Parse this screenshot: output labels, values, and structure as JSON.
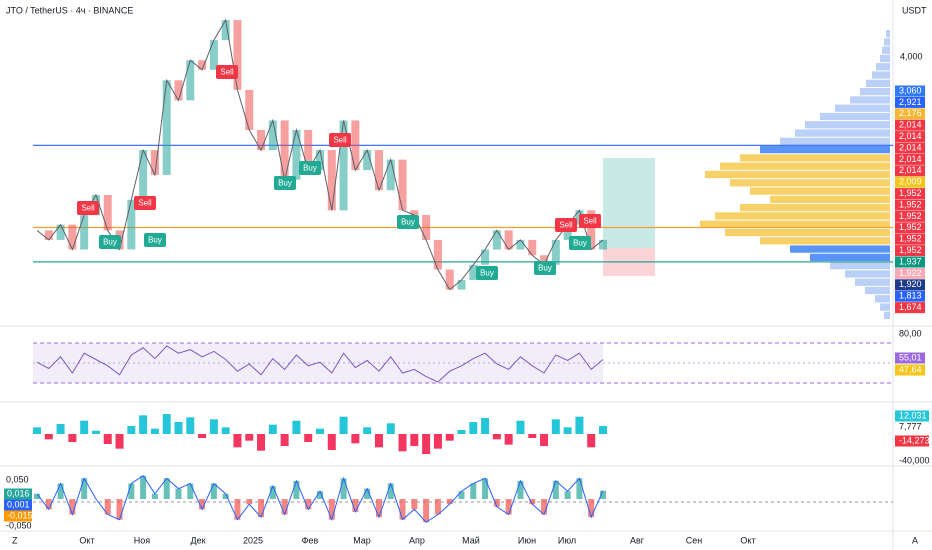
{
  "header": {
    "title": "JTO / TetherUS · 4ч · BINANCE",
    "currency": "USDT"
  },
  "price": {
    "ylim": [
      1.2,
      4.6
    ],
    "values": [
      2.19,
      2.09,
      2.25,
      1.99,
      2.35,
      2.56,
      2.19,
      1.99,
      2.51,
      3.03,
      2.77,
      3.76,
      3.55,
      3.97,
      3.87,
      4.18,
      4.39,
      3.66,
      3.24,
      3.03,
      3.34,
      2.72,
      3.24,
      2.82,
      3.03,
      2.4,
      3.34,
      2.82,
      3.03,
      2.61,
      2.93,
      2.4,
      2.35,
      2.09,
      1.78,
      1.57,
      1.67,
      1.83,
      1.99,
      2.19,
      1.99,
      2.09,
      1.93,
      1.83,
      2.09,
      2.25,
      2.4,
      1.99,
      2.09
    ],
    "levels": [
      {
        "value": 3.08,
        "color": "#2962ff"
      },
      {
        "value": 2.22,
        "color": "#f0a030"
      },
      {
        "value": 1.86,
        "color": "#2aa198"
      }
    ],
    "axis_labels": [
      "4,000"
    ],
    "badges": [
      {
        "label": "3,060",
        "color": "#3179f5"
      },
      {
        "label": "2,921",
        "color": "#2962ff"
      },
      {
        "label": "2,176",
        "color": "#f7b733"
      },
      {
        "label": "2,014",
        "color": "#f23645"
      },
      {
        "label": "2,014",
        "color": "#f23645"
      },
      {
        "label": "2,014",
        "color": "#f23645"
      },
      {
        "label": "2,014",
        "color": "#f23645"
      },
      {
        "label": "2,014",
        "color": "#f23645"
      },
      {
        "label": "2,009",
        "color": "#f5c518"
      },
      {
        "label": "1,952",
        "color": "#f23645"
      },
      {
        "label": "1,952",
        "color": "#f23645"
      },
      {
        "label": "1,952",
        "color": "#f23645"
      },
      {
        "label": "1,952",
        "color": "#f23645"
      },
      {
        "label": "1,952",
        "color": "#f23645"
      },
      {
        "label": "1,952",
        "color": "#f23645"
      },
      {
        "label": "1,937",
        "color": "#089981"
      },
      {
        "label": "1,922",
        "color": "#f7a9b6"
      },
      {
        "label": "1,920",
        "color": "#1e3a8a"
      },
      {
        "label": "1,813",
        "color": "#2962ff"
      },
      {
        "label": "1,674",
        "color": "#f23645"
      }
    ],
    "volume_profile": [
      4,
      6,
      8,
      10,
      14,
      18,
      24,
      30,
      40,
      55,
      70,
      85,
      95,
      110,
      130,
      150,
      170,
      185,
      160,
      140,
      120,
      150,
      175,
      190,
      165,
      130,
      100,
      80,
      60,
      45,
      35,
      25,
      15,
      10,
      6
    ]
  },
  "signals": [
    "Sell",
    "Buy",
    "Sell",
    "Buy",
    "Sell",
    "Buy",
    "Buy",
    "Sell",
    "Buy",
    "Buy",
    "Buy",
    "Sell",
    "Buy",
    "Sell"
  ],
  "rsi": {
    "ylim": [
      10,
      90
    ],
    "values": [
      52,
      45,
      58,
      40,
      62,
      55,
      48,
      38,
      60,
      68,
      56,
      70,
      62,
      66,
      58,
      64,
      55,
      42,
      50,
      38,
      56,
      44,
      60,
      48,
      52,
      40,
      62,
      46,
      54,
      42,
      58,
      40,
      44,
      36,
      30,
      42,
      48,
      56,
      62,
      50,
      44,
      58,
      48,
      40,
      60,
      54,
      62,
      44,
      55
    ],
    "axis_labels": [
      "80,00"
    ],
    "badges": [
      {
        "label": "55,01",
        "color": "#9c6ade"
      },
      {
        "label": "47,64",
        "color": "#f5c518"
      }
    ]
  },
  "osc": {
    "ylim": [
      -45,
      45
    ],
    "values": [
      10,
      -8,
      15,
      -12,
      20,
      5,
      -15,
      -22,
      12,
      28,
      8,
      30,
      18,
      25,
      -6,
      22,
      10,
      -20,
      -10,
      -25,
      14,
      -18,
      20,
      -12,
      8,
      -24,
      26,
      -14,
      10,
      -20,
      16,
      -26,
      -18,
      -30,
      -22,
      -10,
      6,
      18,
      24,
      -8,
      -16,
      20,
      -6,
      -18,
      22,
      10,
      26,
      -20,
      12
    ],
    "labels": [
      {
        "label": "12,031",
        "color": "#26c6da"
      },
      {
        "label": "7,777",
        "color": ""
      },
      {
        "label": "-14,273",
        "color": "#f23645"
      },
      {
        "label": "-40,000",
        "color": ""
      }
    ]
  },
  "macd": {
    "ylim": [
      -0.06,
      0.06
    ],
    "values": [
      0.01,
      -0.02,
      0.03,
      -0.03,
      0.04,
      0.0,
      -0.03,
      -0.04,
      0.03,
      0.045,
      0.01,
      0.04,
      0.02,
      0.03,
      -0.02,
      0.03,
      0.01,
      -0.04,
      -0.01,
      -0.035,
      0.025,
      -0.03,
      0.035,
      -0.02,
      0.015,
      -0.04,
      0.04,
      -0.025,
      0.02,
      -0.035,
      0.03,
      -0.04,
      -0.02,
      -0.045,
      -0.03,
      -0.01,
      0.015,
      0.03,
      0.04,
      -0.015,
      -0.03,
      0.035,
      -0.01,
      -0.03,
      0.035,
      0.015,
      0.04,
      -0.035,
      0.016
    ],
    "axis_labels": [
      "0,050",
      "-0,050"
    ],
    "badges": [
      {
        "label": "0,016",
        "color": "#26a69a"
      },
      {
        "label": "0,001",
        "color": "#2962ff"
      },
      {
        "label": "-0,015",
        "color": "#ff9800"
      }
    ]
  },
  "time_axis": [
    "Окт",
    "Ноя",
    "Дек",
    "2025",
    "Фев",
    "Мар",
    "Апр",
    "Май",
    "Июн",
    "Июл",
    "Авг",
    "Сен",
    "Окт"
  ],
  "corner_left": "Z",
  "corner_right": "A"
}
